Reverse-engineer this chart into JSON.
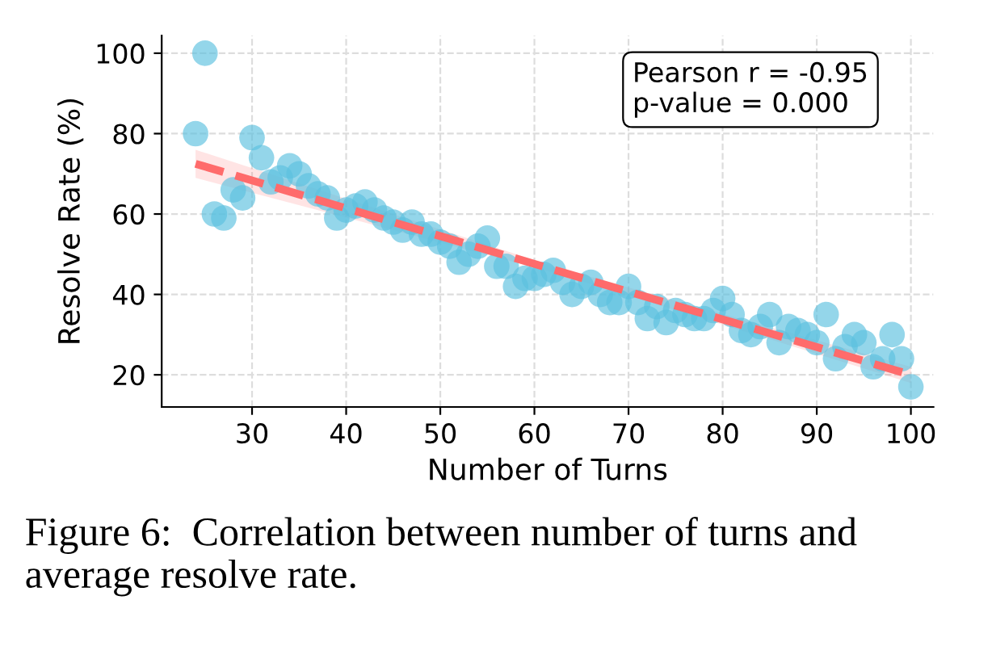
{
  "chart_data": {
    "type": "scatter",
    "xlabel": "Number of Turns",
    "ylabel": "Resolve Rate (%)",
    "xlim": [
      20.4,
      102.4
    ],
    "ylim": [
      12,
      104.4
    ],
    "xticks": [
      30,
      40,
      50,
      60,
      70,
      80,
      90,
      100
    ],
    "yticks": [
      20,
      40,
      60,
      80,
      100
    ],
    "grid": true,
    "legend": false,
    "series": [
      {
        "color": "#5bc0de",
        "marker": "circle",
        "x": [
          24,
          25,
          26,
          27,
          28,
          29,
          30,
          31,
          32,
          33,
          34,
          35,
          36,
          37,
          38,
          39,
          40,
          41,
          42,
          43,
          44,
          45,
          46,
          47,
          48,
          49,
          50,
          51,
          52,
          53,
          54,
          55,
          56,
          57,
          58,
          59,
          60,
          61,
          62,
          63,
          64,
          65,
          66,
          67,
          68,
          69,
          70,
          71,
          72,
          73,
          74,
          75,
          76,
          77,
          78,
          79,
          80,
          81,
          82,
          83,
          84,
          85,
          86,
          87,
          88,
          89,
          90,
          91,
          92,
          93,
          94,
          95,
          96,
          97,
          98,
          99,
          100
        ],
        "values": [
          80,
          100,
          60,
          59,
          66,
          64,
          79,
          74,
          68,
          69,
          72,
          70,
          67,
          65,
          64,
          59,
          61,
          62,
          63,
          61,
          59,
          58,
          56,
          58,
          55,
          55,
          53,
          52,
          48,
          50,
          52,
          54,
          47,
          47,
          42,
          44,
          44,
          45,
          46,
          43,
          40,
          42,
          43,
          40,
          38,
          38,
          42,
          38,
          34,
          37,
          33,
          36,
          35,
          34,
          34,
          36,
          39,
          35,
          31,
          30,
          32,
          35,
          28,
          32,
          31,
          30,
          28,
          35,
          24,
          27,
          30,
          28,
          22,
          24,
          30,
          24,
          17
        ]
      },
      {
        "type": "line",
        "color": "#ff6b6b",
        "line_style": "dashed",
        "x": [
          24,
          62,
          100
        ],
        "values": [
          72.5,
          46.2,
          20
        ],
        "lower": [
          69,
          45.5,
          18
        ],
        "upper": [
          76,
          47,
          22
        ]
      }
    ],
    "annotations": [
      "Pearson r = -0.95\np-value = 0.000",
      "Figure 6:  Correlation between number of turns and average resolve rate."
    ]
  }
}
